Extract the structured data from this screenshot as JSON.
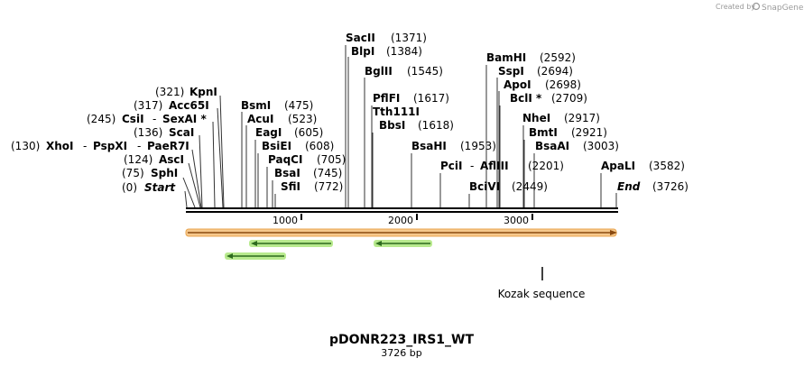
{
  "branding": {
    "prefix": "Created by",
    "name": "SnapGene"
  },
  "plasmid": {
    "name": "pDONR223_IRS1_WT",
    "length_label": "3726 bp"
  },
  "ruler": {
    "length": 3726,
    "ticks": [
      "1000",
      "2000",
      "3000"
    ]
  },
  "sites": [
    {
      "enzyme": "SacII",
      "pos": "(1371)"
    },
    {
      "enzyme": "BlpI",
      "pos": "(1384)"
    },
    {
      "enzyme": "BglII",
      "pos": "(1545)"
    },
    {
      "enzyme": "PflFI",
      "pos": "(1617)"
    },
    {
      "enzyme": "Tth111I",
      "pos": ""
    },
    {
      "enzyme": "BbsI",
      "pos": "(1618)"
    },
    {
      "enzyme": "BsaHI",
      "pos": "(1953)"
    },
    {
      "enzyme": "PciI",
      "pos": ""
    },
    {
      "enzyme": "AflIII",
      "pos": "(2201)"
    },
    {
      "enzyme": "BciVI",
      "pos": "(2449)"
    },
    {
      "enzyme": "BamHI",
      "pos": "(2592)"
    },
    {
      "enzyme": "SspI",
      "pos": "(2694)"
    },
    {
      "enzyme": "ApoI",
      "pos": "(2698)"
    },
    {
      "enzyme": "BclI *",
      "pos": "(2709)"
    },
    {
      "enzyme": "NheI",
      "pos": "(2917)"
    },
    {
      "enzyme": "BmtI",
      "pos": "(2921)"
    },
    {
      "enzyme": "BsaAI",
      "pos": "(3003)"
    },
    {
      "enzyme": "ApaLI",
      "pos": "(3582)"
    },
    {
      "enzyme": "End",
      "pos": "(3726)"
    },
    {
      "enzyme": "KpnI",
      "pos": "(321)"
    },
    {
      "enzyme": "Acc65I",
      "pos": "(317)"
    },
    {
      "enzyme": "CsiI",
      "pos": "(245)"
    },
    {
      "enzyme": "SexAI *",
      "pos": ""
    },
    {
      "enzyme": "ScaI",
      "pos": "(136)"
    },
    {
      "enzyme": "XhoI",
      "pos": "(130)"
    },
    {
      "enzyme": "PspXI",
      "pos": ""
    },
    {
      "enzyme": "PaeR7I",
      "pos": ""
    },
    {
      "enzyme": "AscI",
      "pos": "(124)"
    },
    {
      "enzyme": "SphI",
      "pos": "(75)"
    },
    {
      "enzyme": "Start",
      "pos": "(0)"
    },
    {
      "enzyme": "BsmI",
      "pos": "(475)"
    },
    {
      "enzyme": "AcuI",
      "pos": "(523)"
    },
    {
      "enzyme": "EagI",
      "pos": "(605)"
    },
    {
      "enzyme": "BsiEI",
      "pos": "(608)"
    },
    {
      "enzyme": "PaqCI",
      "pos": "(705)"
    },
    {
      "enzyme": "BsaI",
      "pos": "(745)"
    },
    {
      "enzyme": "SfiI",
      "pos": "(772)"
    }
  ],
  "features": [
    {
      "name": "Kozak sequence"
    }
  ],
  "colors": {
    "backbone": "#000000",
    "orf_fill": "#f6c88c",
    "orf_outline": "#c97b2e",
    "primer_glow": "#a8e07a",
    "primer_line": "#2d6b1e"
  }
}
